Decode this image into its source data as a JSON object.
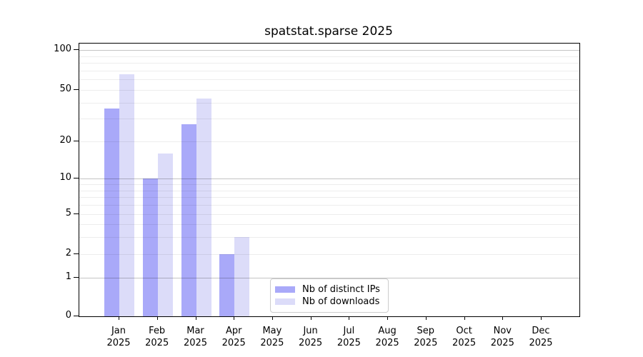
{
  "title": "spatstat.sparse 2025",
  "colors": {
    "distinct_ips": "#a9a9f9",
    "downloads": "#dcdcf9",
    "axis": "#000000",
    "legend_border": "#cccccc"
  },
  "legend": {
    "items": [
      {
        "label": "Nb of distinct IPs",
        "color": "#a9a9f9"
      },
      {
        "label": "Nb of downloads",
        "color": "#dcdcf9"
      }
    ]
  },
  "chart_data": {
    "type": "bar",
    "title": "spatstat.sparse 2025",
    "categories": [
      "Jan 2025",
      "Feb 2025",
      "Mar 2025",
      "Apr 2025",
      "May 2025",
      "Jun 2025",
      "Jul 2025",
      "Aug 2025",
      "Sep 2025",
      "Oct 2025",
      "Nov 2025",
      "Dec 2025"
    ],
    "months": [
      "Jan",
      "Feb",
      "Mar",
      "Apr",
      "May",
      "Jun",
      "Jul",
      "Aug",
      "Sep",
      "Oct",
      "Nov",
      "Dec"
    ],
    "year": "2025",
    "series": [
      {
        "name": "Nb of distinct IPs",
        "color": "#a9a9f9",
        "values": [
          36,
          10,
          27,
          2,
          0,
          0,
          0,
          0,
          0,
          0,
          0,
          0
        ]
      },
      {
        "name": "Nb of downloads",
        "color": "#dcdcf9",
        "values": [
          66,
          16,
          43,
          3,
          0,
          0,
          0,
          0,
          0,
          0,
          0,
          0
        ]
      }
    ],
    "xlabel": "",
    "ylabel": "",
    "yscale": "log1p",
    "ylim": [
      0,
      113
    ],
    "yticks": [
      0,
      1,
      2,
      5,
      10,
      20,
      50,
      100
    ],
    "major_gridlines": [
      1,
      10,
      100
    ],
    "minor_gridlines": [
      2,
      3,
      4,
      5,
      6,
      7,
      8,
      9,
      20,
      30,
      40,
      50,
      60,
      70,
      80,
      90
    ],
    "grid": "horizontal",
    "legend_position": "lower center"
  }
}
